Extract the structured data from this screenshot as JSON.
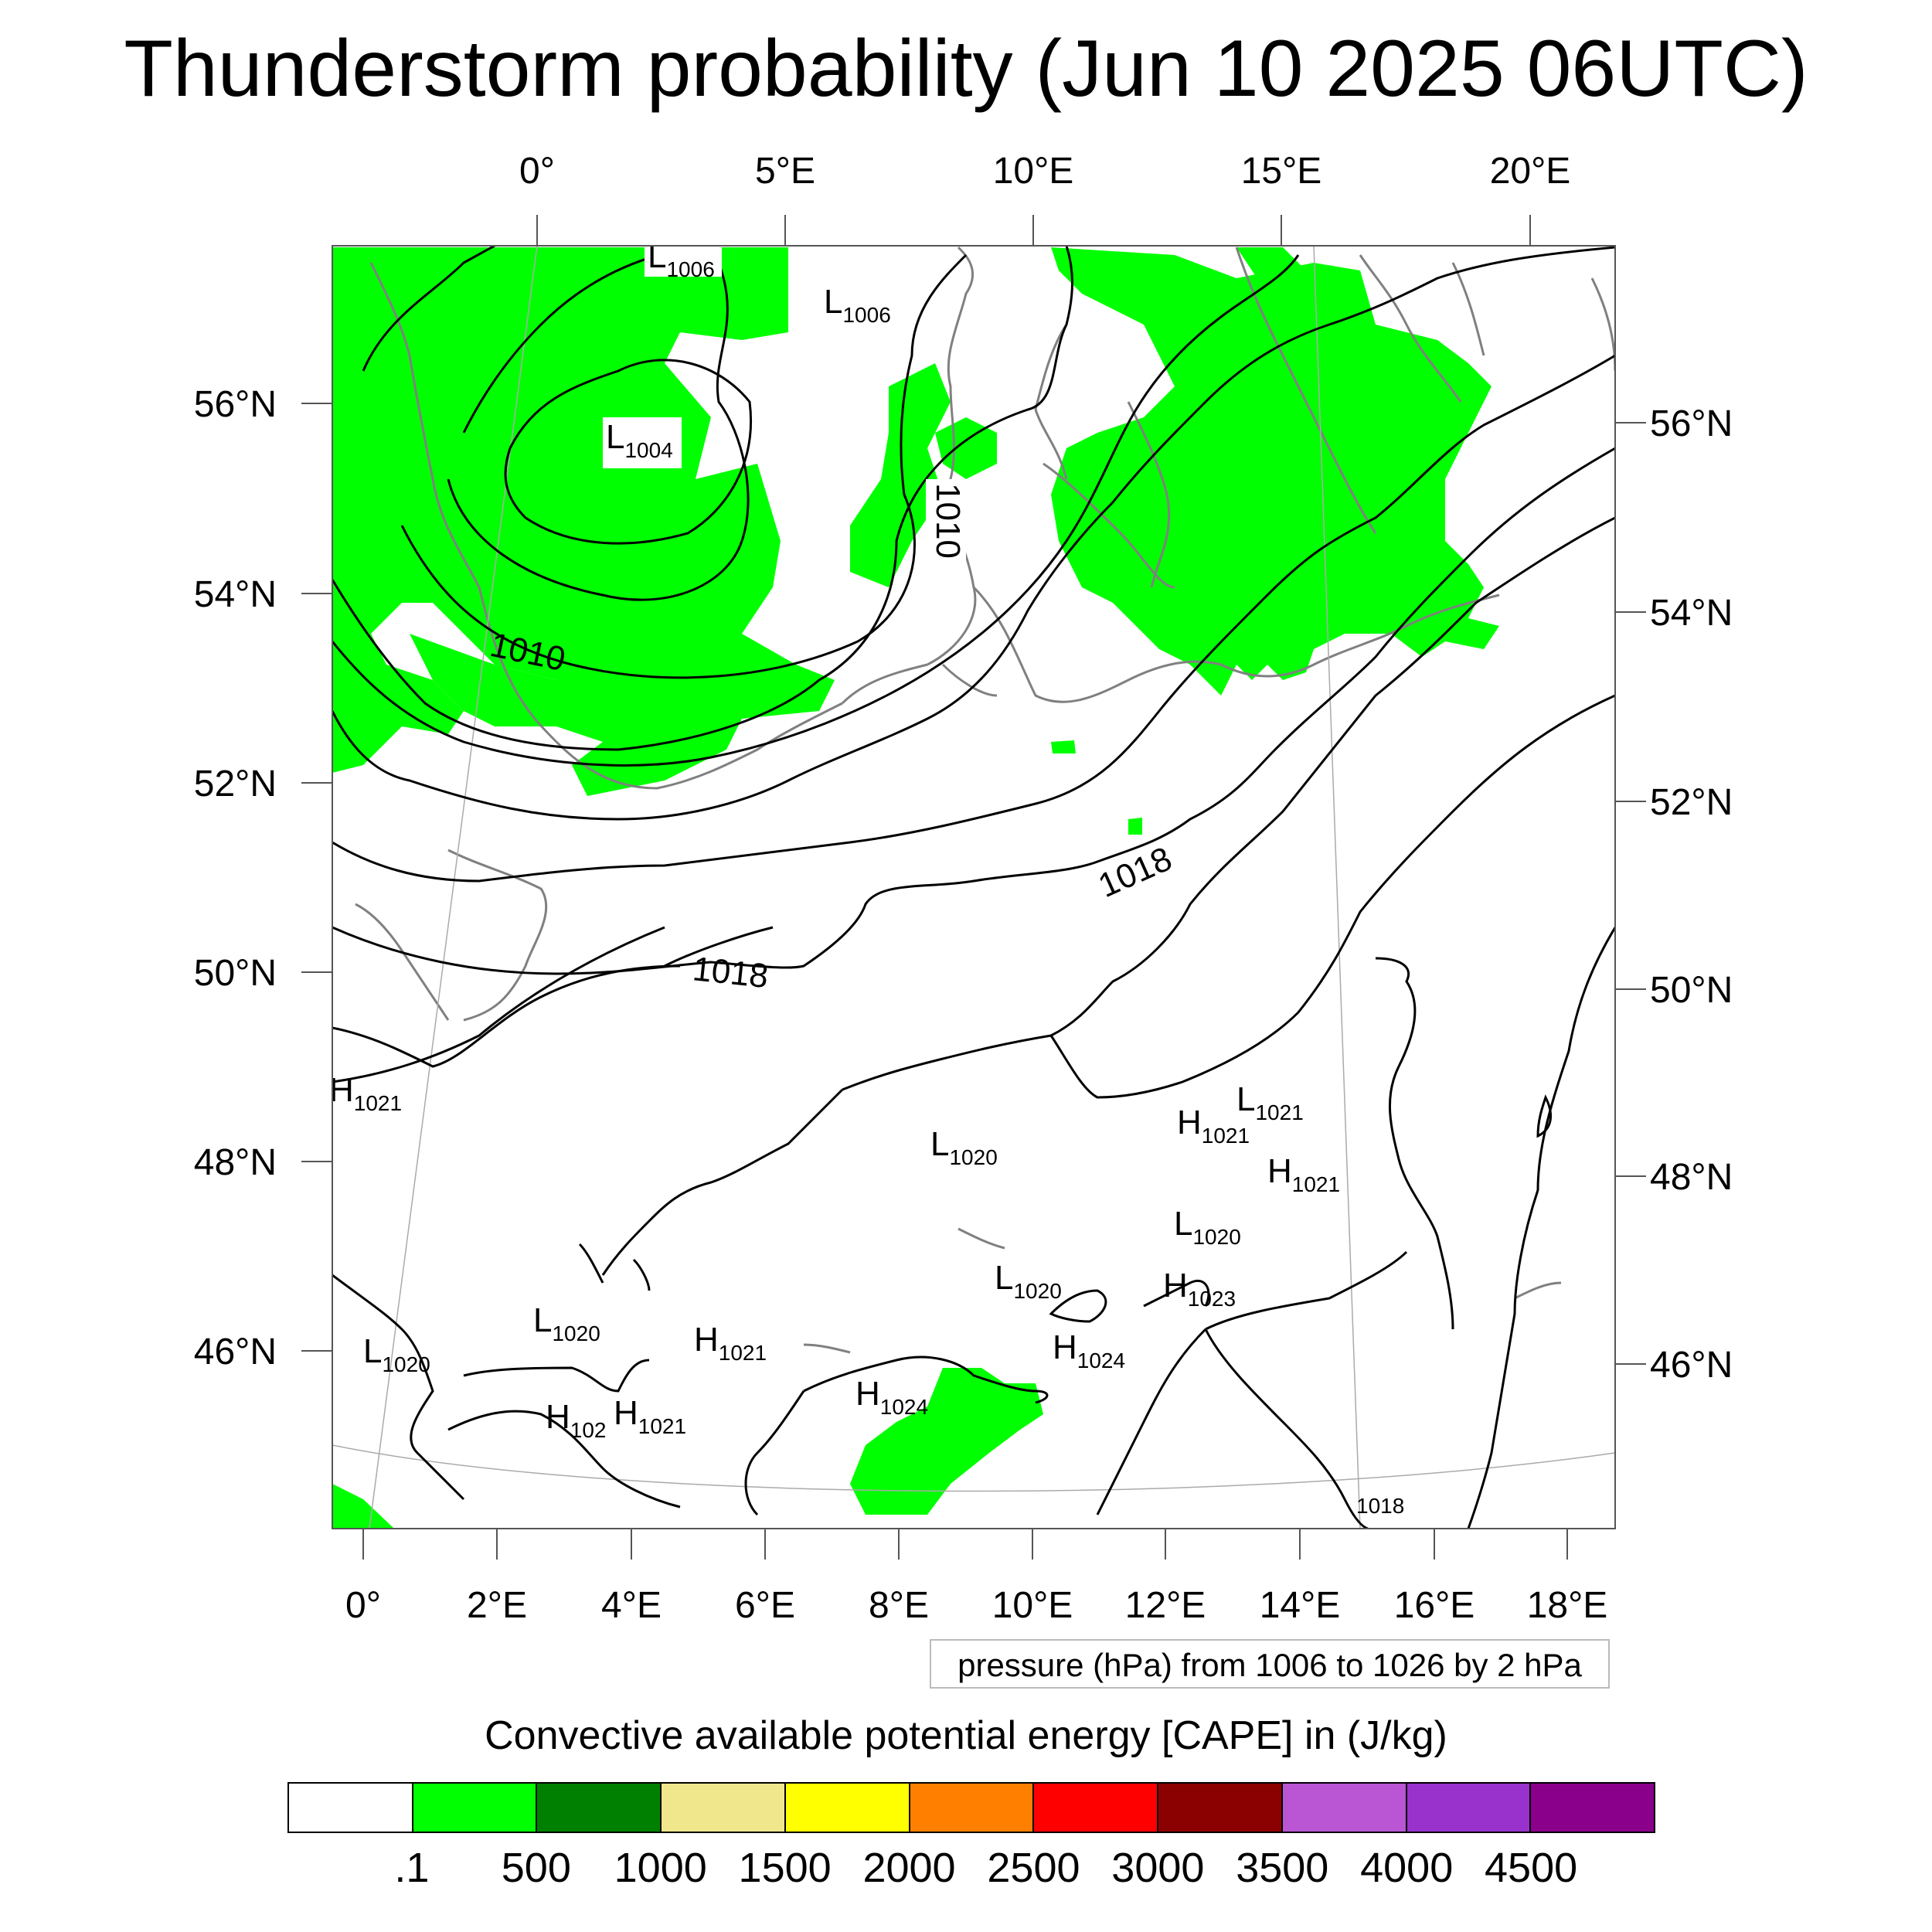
{
  "title": "Thunderstorm probability (Jun 10 2025 06UTC)",
  "top_lon_labels": [
    "0°",
    "5°E",
    "10°E",
    "15°E",
    "20°E"
  ],
  "bottom_lon_labels": [
    "0°",
    "2°E",
    "4°E",
    "6°E",
    "8°E",
    "10°E",
    "12°E",
    "14°E",
    "16°E",
    "18°E"
  ],
  "left_lat_labels": [
    "56°N",
    "54°N",
    "52°N",
    "50°N",
    "48°N",
    "46°N"
  ],
  "right_lat_labels": [
    "56°N",
    "54°N",
    "52°N",
    "50°N",
    "48°N",
    "46°N"
  ],
  "isobar_labels": [
    "1010",
    "1010",
    "1018",
    "1018"
  ],
  "pressure_centers": [
    {
      "letter": "L",
      "value": "1006"
    },
    {
      "letter": "L",
      "value": "1006"
    },
    {
      "letter": "L",
      "value": "1004"
    },
    {
      "letter": "H",
      "value": "1021"
    },
    {
      "letter": "L",
      "value": "1020"
    },
    {
      "letter": "H",
      "value": "1021"
    },
    {
      "letter": "L",
      "value": "1021"
    },
    {
      "letter": "H",
      "value": "1021"
    },
    {
      "letter": "L",
      "value": "1020"
    },
    {
      "letter": "L",
      "value": "1020"
    },
    {
      "letter": "H",
      "value": "1023"
    },
    {
      "letter": "L",
      "value": "1020"
    },
    {
      "letter": "L",
      "value": "1020"
    },
    {
      "letter": "H",
      "value": "1021"
    },
    {
      "letter": "H",
      "value": "1024"
    },
    {
      "letter": "H",
      "value": "102"
    },
    {
      "letter": "H",
      "value": "1021"
    },
    {
      "letter": "H",
      "value": "1024"
    },
    {
      "letter": "",
      "value": "1018"
    }
  ],
  "pressure_note": "pressure (hPa) from 1006 to 1026 by 2 hPa",
  "legend": {
    "title": "Convective available potential energy [CAPE] in (J/kg)",
    "colors": [
      "#ffffff",
      "#00ff00",
      "#008000",
      "#f0e68c",
      "#ffff00",
      "#ff8000",
      "#ff0000",
      "#8b0000",
      "#ba55d3",
      "#9932cc",
      "#8b008b"
    ],
    "labels": [
      ".1",
      "500",
      "1000",
      "1500",
      "2000",
      "2500",
      "3000",
      "3500",
      "4000",
      "4500"
    ]
  },
  "colors": {
    "cape_fill": "#00ff00",
    "isobar": "#000000",
    "coastline": "#808080",
    "grid": "#aaaaaa"
  }
}
